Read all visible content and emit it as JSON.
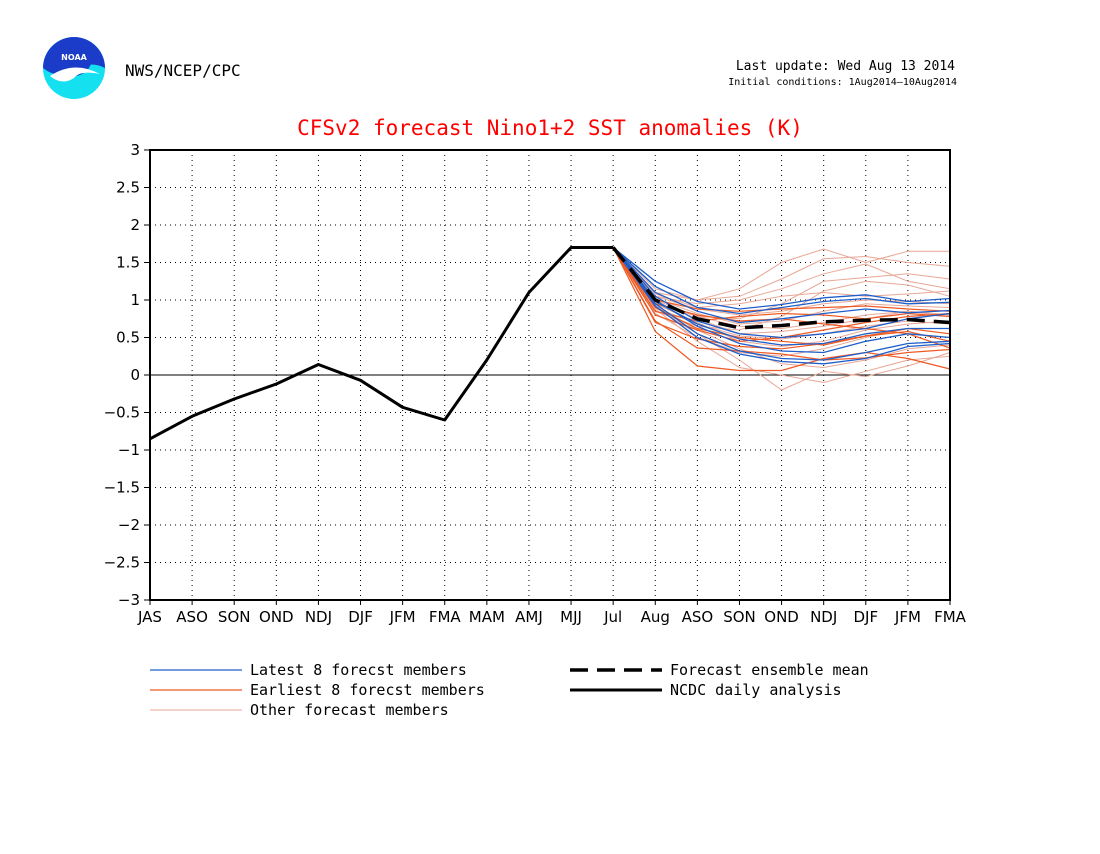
{
  "header": {
    "agency": "NWS/NCEP/CPC",
    "logo_text": "NOAA",
    "last_update": "Last update: Wed Aug 13 2014",
    "initial_conditions": "Initial conditions: 1Aug2014–10Aug2014"
  },
  "colors": {
    "title": "#ff0000",
    "latest": "#1f5fc9",
    "earliest": "#ee5a24",
    "other": "#e8a796",
    "observed": "#000000",
    "logo_outer": "#14e0f0",
    "logo_inner": "#1a3cc8"
  },
  "chart_data": {
    "type": "line",
    "title": "CFSv2 forecast Nino1+2 SST anomalies (K)",
    "xlabel": "",
    "ylabel": "",
    "categories": [
      "JAS",
      "ASO",
      "SON",
      "OND",
      "NDJ",
      "DJF",
      "JFM",
      "FMA",
      "MAM",
      "AMJ",
      "MJJ",
      "Jul",
      "Aug",
      "ASO",
      "SON",
      "OND",
      "NDJ",
      "DJF",
      "JFM",
      "FMA"
    ],
    "ylim": [
      -3,
      3
    ],
    "yticks": [
      "3",
      "2.5",
      "2",
      "1.5",
      "1",
      "0.5",
      "0",
      "−0.5",
      "−1",
      "−1.5",
      "−2",
      "−2.5",
      "−3"
    ],
    "ytick_values": [
      3,
      2.5,
      2,
      1.5,
      1,
      0.5,
      0,
      -0.5,
      -1,
      -1.5,
      -2,
      -2.5,
      -3
    ],
    "grid": true,
    "zero_line": true,
    "observed": {
      "name": "NCDC daily analysis",
      "values": [
        -0.85,
        -0.55,
        -0.32,
        -0.12,
        0.14,
        -0.07,
        -0.43,
        -0.6,
        0.2,
        1.1,
        1.7,
        1.7
      ]
    },
    "ensemble_mean": {
      "name": "Forecast ensemble mean",
      "x_index": [
        11,
        12,
        13,
        14,
        15,
        16,
        17,
        18,
        19
      ],
      "values": [
        1.7,
        1.0,
        0.75,
        0.63,
        0.66,
        0.71,
        0.73,
        0.74,
        0.7
      ]
    },
    "member_groups": [
      {
        "name": "Latest 8 forecst members",
        "x_index": [
          11,
          12,
          13,
          14,
          15,
          16,
          17,
          18,
          19
        ],
        "members": [
          [
            1.7,
            1.25,
            0.98,
            0.88,
            0.94,
            1.03,
            1.07,
            0.98,
            1.02
          ],
          [
            1.7,
            1.18,
            0.9,
            0.82,
            0.9,
            0.98,
            1.02,
            0.95,
            0.97
          ],
          [
            1.7,
            1.1,
            0.85,
            0.7,
            0.75,
            0.82,
            0.88,
            0.83,
            0.86
          ],
          [
            1.7,
            1.05,
            0.72,
            0.55,
            0.5,
            0.55,
            0.62,
            0.75,
            0.82
          ],
          [
            1.7,
            1.0,
            0.65,
            0.42,
            0.32,
            0.3,
            0.45,
            0.55,
            0.5
          ],
          [
            1.7,
            0.95,
            0.55,
            0.32,
            0.22,
            0.2,
            0.3,
            0.42,
            0.45
          ],
          [
            1.7,
            0.92,
            0.5,
            0.28,
            0.18,
            0.15,
            0.22,
            0.38,
            0.42
          ],
          [
            1.7,
            0.98,
            0.68,
            0.48,
            0.4,
            0.42,
            0.55,
            0.62,
            0.62
          ]
        ]
      },
      {
        "name": "Earliest 8 forecst members",
        "x_index": [
          11,
          12,
          13,
          14,
          15,
          16,
          17,
          18,
          19
        ],
        "members": [
          [
            1.7,
            0.58,
            0.12,
            0.06,
            0.06,
            0.22,
            0.3,
            0.22,
            0.08
          ],
          [
            1.7,
            0.72,
            0.36,
            0.32,
            0.28,
            0.2,
            0.23,
            0.3,
            0.34
          ],
          [
            1.7,
            0.9,
            0.62,
            0.5,
            0.45,
            0.4,
            0.52,
            0.58,
            0.45
          ],
          [
            1.7,
            0.85,
            0.72,
            0.78,
            0.82,
            0.8,
            0.75,
            0.82,
            0.78
          ],
          [
            1.7,
            1.0,
            0.88,
            0.85,
            0.88,
            0.9,
            0.92,
            0.88,
            0.85
          ],
          [
            1.7,
            0.7,
            0.48,
            0.38,
            0.35,
            0.42,
            0.52,
            0.62,
            0.55
          ],
          [
            1.7,
            0.8,
            0.6,
            0.45,
            0.5,
            0.6,
            0.7,
            0.78,
            0.82
          ],
          [
            1.7,
            0.95,
            0.8,
            0.72,
            0.75,
            0.68,
            0.62,
            0.55,
            0.36
          ]
        ]
      },
      {
        "name": "Other forecast members",
        "x_index": [
          11,
          12,
          13,
          14,
          15,
          16,
          17,
          18,
          19
        ],
        "members": [
          [
            1.7,
            1.15,
            1.0,
            1.15,
            1.5,
            1.68,
            1.5,
            1.65,
            1.65
          ],
          [
            1.7,
            1.1,
            1.0,
            1.05,
            1.28,
            1.55,
            1.58,
            1.5,
            1.45
          ],
          [
            1.7,
            1.05,
            0.95,
            1.0,
            1.15,
            1.35,
            1.48,
            1.25,
            1.15
          ],
          [
            1.7,
            0.9,
            0.55,
            0.2,
            -0.2,
            0.05,
            -0.02,
            0.12,
            0.3
          ],
          [
            1.7,
            0.88,
            0.45,
            0.1,
            0.0,
            -0.1,
            0.05,
            0.2,
            0.25
          ],
          [
            1.7,
            0.92,
            0.6,
            0.35,
            0.15,
            0.1,
            0.2,
            0.35,
            0.4
          ],
          [
            1.7,
            0.98,
            0.75,
            0.55,
            0.58,
            0.65,
            0.75,
            0.85,
            0.78
          ],
          [
            1.7,
            1.02,
            0.82,
            0.68,
            0.72,
            0.85,
            0.95,
            0.92,
            0.9
          ],
          [
            1.7,
            1.08,
            0.9,
            0.95,
            1.05,
            1.1,
            1.05,
            1.08,
            1.12
          ],
          [
            1.7,
            0.85,
            0.65,
            0.6,
            0.78,
            1.12,
            1.25,
            1.2,
            1.05
          ],
          [
            1.7,
            0.95,
            0.7,
            0.45,
            0.38,
            0.45,
            0.6,
            0.68,
            0.72
          ],
          [
            1.7,
            1.0,
            0.78,
            0.75,
            0.95,
            1.25,
            1.3,
            1.35,
            1.28
          ],
          [
            1.7,
            0.82,
            0.5,
            0.3,
            0.25,
            0.35,
            0.5,
            0.62,
            0.62
          ],
          [
            1.7,
            1.05,
            0.88,
            0.8,
            0.85,
            0.95,
            1.0,
            0.98,
            0.95
          ],
          [
            1.7,
            0.9,
            0.68,
            0.52,
            0.48,
            0.55,
            0.65,
            0.72,
            0.68
          ],
          [
            1.7,
            0.96,
            0.78,
            0.65,
            0.62,
            0.7,
            0.8,
            0.85,
            0.8
          ]
        ]
      }
    ],
    "legend": [
      {
        "key": "latest",
        "label": "Latest 8 forecst members",
        "style": "thin"
      },
      {
        "key": "earliest",
        "label": "Earliest 8 forecst members",
        "style": "thin"
      },
      {
        "key": "other",
        "label": "Other forecast members",
        "style": "thin"
      },
      {
        "key": "mean",
        "label": "Forecast ensemble mean",
        "style": "dashed"
      },
      {
        "key": "observed",
        "label": "NCDC daily analysis",
        "style": "solid"
      }
    ],
    "legend_placement": "bottom"
  }
}
